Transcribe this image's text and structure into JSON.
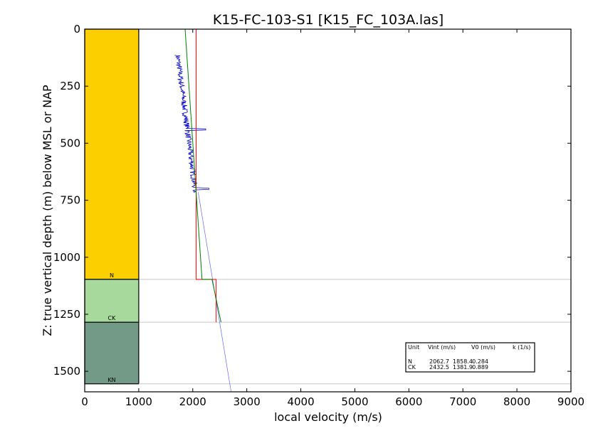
{
  "chart_data": {
    "type": "line",
    "title": "K15-FC-103-S1 [K15_FC_103A.las]",
    "xlabel": "local velocity (m/s)",
    "ylabel": "Z: true vertical depth (m) below MSL or NAP",
    "xlim": [
      0,
      9000
    ],
    "ylim": [
      1590,
      0
    ],
    "x_ticks": [
      "0",
      "1000",
      "2000",
      "3000",
      "4000",
      "5000",
      "6000",
      "7000",
      "8000",
      "9000"
    ],
    "y_ticks": [
      "0",
      "250",
      "500",
      "750",
      "1000",
      "1250",
      "1500"
    ],
    "grid": false,
    "zones": [
      {
        "name": "N",
        "top": 0,
        "base": 1097,
        "color": "#fccf00"
      },
      {
        "name": "CK",
        "top": 1097,
        "base": 1285,
        "color": "#a6d99b"
      },
      {
        "name": "KN",
        "top": 1285,
        "base": 1555,
        "color": "#739a86"
      }
    ],
    "series": [
      {
        "kind": "interval_velocity",
        "color": "#ff0000",
        "points": [
          [
            2063,
            0
          ],
          [
            2063,
            1097
          ],
          [
            2433,
            1097
          ],
          [
            2433,
            1285
          ]
        ]
      },
      {
        "kind": "linear_trend",
        "color": "#008000",
        "points": [
          [
            1858,
            0
          ],
          [
            2171,
            1097
          ],
          [
            2356,
            1097
          ],
          [
            2523,
            1285
          ]
        ]
      },
      {
        "kind": "sonic_log",
        "color": "#0000cc",
        "depth_range": [
          115,
          715
        ],
        "velocity_range": [
          1700,
          2300
        ]
      },
      {
        "kind": "trend_extension",
        "color": "#6666ff",
        "points": [
          [
            2100,
            715
          ],
          [
            2710,
            1590
          ]
        ]
      }
    ],
    "legend": {
      "position": "bottom-right",
      "header": [
        "Unit",
        "Vint (m/s)",
        "V0 (m/s)",
        "k (1/s)"
      ],
      "rows": [
        {
          "unit": "N",
          "vint": "2062.7",
          "v0": "1858.4",
          "k": "0.284"
        },
        {
          "unit": "CK",
          "vint": "2432.5",
          "v0": "1381.9",
          "k": "0.889"
        }
      ]
    }
  }
}
